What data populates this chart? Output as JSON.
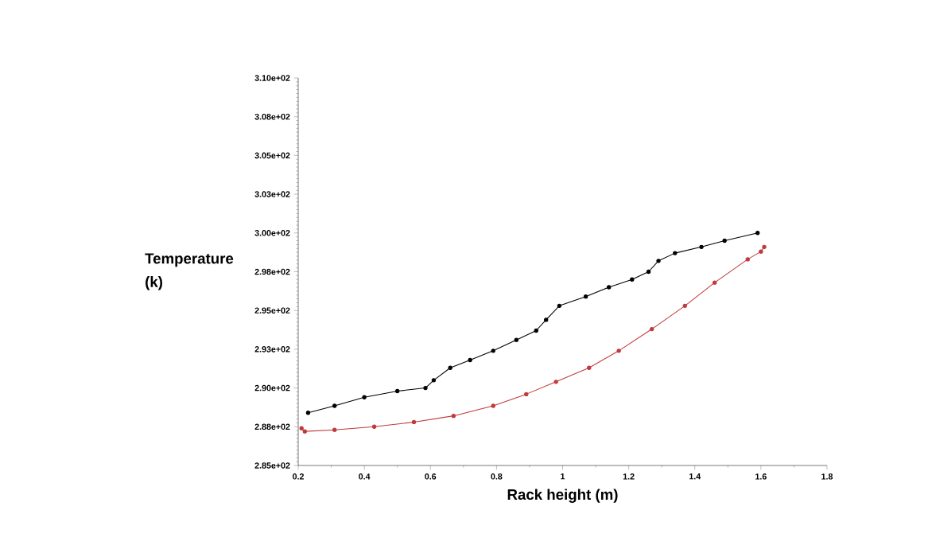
{
  "chart_data": {
    "type": "line",
    "xlabel": "Rack height (m)",
    "ylabel": "Temperature (k)",
    "xlim": [
      0.2,
      1.8
    ],
    "xticks": [
      0.2,
      0.4,
      0.6,
      0.8,
      1,
      1.2,
      1.4,
      1.6,
      1.8
    ],
    "ylim": [
      285,
      310
    ],
    "yticks": [
      {
        "value": 285,
        "label": "2.85e+02"
      },
      {
        "value": 287.5,
        "label": "2.88e+02"
      },
      {
        "value": 290,
        "label": "2.90e+02"
      },
      {
        "value": 292.5,
        "label": "2.93e+02"
      },
      {
        "value": 295,
        "label": "2.95e+02"
      },
      {
        "value": 297.5,
        "label": "2.98e+02"
      },
      {
        "value": 300,
        "label": "3.00e+02"
      },
      {
        "value": 302.5,
        "label": "3.03e+02"
      },
      {
        "value": 305,
        "label": "3.05e+02"
      },
      {
        "value": 307.5,
        "label": "3.08e+02"
      },
      {
        "value": 310,
        "label": "3.10e+02"
      }
    ],
    "grid": false,
    "marker": "circle",
    "series": [
      {
        "color": "#000000",
        "x": [
          0.23,
          0.31,
          0.4,
          0.5,
          0.585,
          0.61,
          0.66,
          0.72,
          0.79,
          0.86,
          0.92,
          0.95,
          0.99,
          1.07,
          1.14,
          1.21,
          1.26,
          1.29,
          1.34,
          1.42,
          1.49,
          1.59
        ],
        "values": [
          288.4,
          288.85,
          289.4,
          289.8,
          290.0,
          290.5,
          291.3,
          291.8,
          292.4,
          293.1,
          293.7,
          294.4,
          295.3,
          295.9,
          296.5,
          297.0,
          297.5,
          298.2,
          298.7,
          299.1,
          299.5,
          300.0
        ]
      },
      {
        "color": "#c0393b",
        "x": [
          0.21,
          0.22,
          0.31,
          0.43,
          0.55,
          0.67,
          0.79,
          0.89,
          0.98,
          1.08,
          1.17,
          1.27,
          1.37,
          1.46,
          1.56,
          1.6,
          1.61
        ],
        "values": [
          287.4,
          287.2,
          287.3,
          287.5,
          287.8,
          288.2,
          288.85,
          289.6,
          290.4,
          291.3,
          292.4,
          293.8,
          295.3,
          296.8,
          298.3,
          298.8,
          299.1
        ]
      }
    ]
  }
}
